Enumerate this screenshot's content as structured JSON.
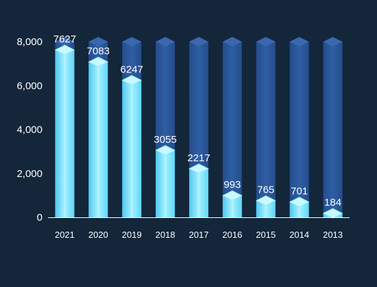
{
  "chart_data": {
    "type": "bar",
    "title": "",
    "xlabel": "",
    "ylabel": "",
    "categories": [
      "2021",
      "2020",
      "2019",
      "2018",
      "2017",
      "2016",
      "2015",
      "2014",
      "2013"
    ],
    "values": [
      7627,
      7083,
      6247,
      3055,
      2217,
      993,
      765,
      701,
      184
    ],
    "ylim": [
      0,
      8000
    ],
    "yticks": [
      0,
      2000,
      4000,
      6000,
      8000
    ],
    "ytick_labels": [
      "0",
      "2,000",
      "4,000",
      "6,000",
      "8,000"
    ],
    "grid": false,
    "legend": "none",
    "style": "3d-cylinder-bars",
    "colors": {
      "background": "#13263a",
      "track": "#2a5699",
      "track_top": "#3b67ae",
      "bar_front": "#5fd6f7",
      "bar_front_light": "#a6f2ff",
      "bar_top": "#c9f8ff",
      "axis": "#ffffff",
      "text": "#ffffff"
    }
  }
}
